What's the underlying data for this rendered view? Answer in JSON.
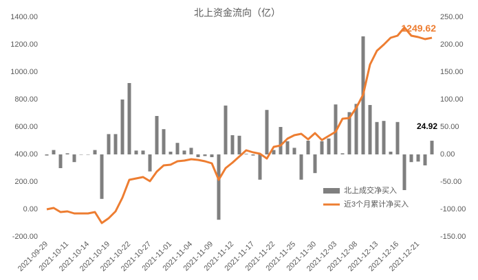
{
  "chart_data": {
    "type": "bar",
    "title": "北上资金流向（亿）",
    "categories": [
      "2021-09-29",
      null,
      null,
      "2021-10-11",
      null,
      null,
      "2021-10-14",
      null,
      null,
      "2021-10-19",
      null,
      null,
      "2021-10-22",
      null,
      null,
      "2021-10-27",
      null,
      null,
      "2021-11-01",
      null,
      null,
      "2021-11-04",
      null,
      null,
      "2021-11-09",
      null,
      null,
      "2021-11-12",
      null,
      null,
      "2021-11-17",
      null,
      null,
      "2021-11-22",
      null,
      null,
      "2021-11-25",
      null,
      null,
      "2021-11-30",
      null,
      null,
      "2021-12-03",
      null,
      null,
      "2021-12-08",
      null,
      null,
      "2021-12-13",
      null,
      null,
      "2021-12-16",
      null,
      null,
      "2021-12-21",
      null,
      null
    ],
    "series": [
      {
        "name": "北上成交净买入",
        "type": "bar",
        "axis": "y2",
        "color": "#7f7f7f",
        "values": [
          -2,
          8,
          -25,
          2,
          -14,
          0,
          0,
          8,
          -81,
          37,
          37,
          100,
          130,
          7,
          7,
          -31,
          70,
          46,
          5,
          21,
          7,
          12,
          -5,
          -3,
          -5,
          -119,
          89,
          35,
          34,
          1,
          -2,
          -46,
          81,
          8,
          50,
          24,
          12,
          -46,
          25,
          -34,
          24,
          29,
          91,
          2,
          77,
          92,
          215,
          90,
          59,
          61,
          5,
          59,
          -65,
          -14,
          -13,
          -20,
          24.92
        ]
      },
      {
        "name": "近3个月累计净买入",
        "type": "line",
        "color": "#ed7d31",
        "values": [
          0,
          10,
          -20,
          -15,
          -30,
          -30,
          -30,
          -20,
          -100,
          -65,
          -15,
          85,
          215,
          225,
          235,
          205,
          275,
          320,
          325,
          350,
          355,
          365,
          360,
          350,
          335,
          215,
          300,
          340,
          385,
          430,
          415,
          405,
          370,
          455,
          465,
          515,
          540,
          550,
          510,
          555,
          505,
          535,
          565,
          660,
          665,
          740,
          835,
          1055,
          1155,
          1200,
          1250,
          1265,
          1325,
          1265,
          1255,
          1240,
          1249.62
        ]
      }
    ],
    "ylim": [
      -200,
      1400
    ],
    "yticks": [
      {
        "value": -200,
        "label": "-200.00"
      },
      {
        "value": 0,
        "label": "0.00"
      },
      {
        "value": 200,
        "label": "200.00"
      },
      {
        "value": 400,
        "label": "400.00"
      },
      {
        "value": 600,
        "label": "600.00"
      },
      {
        "value": 800,
        "label": "800.00"
      },
      {
        "value": 1000,
        "label": "1000.00"
      },
      {
        "value": 1200,
        "label": "1200.00"
      },
      {
        "value": 1400,
        "label": "1400.00"
      }
    ],
    "y2lim": [
      -150,
      250
    ],
    "y2ticks": [
      {
        "value": -150,
        "label": "-150.00"
      },
      {
        "value": -100,
        "label": "-100.00"
      },
      {
        "value": -50,
        "label": "-50.00"
      },
      {
        "value": 0,
        "label": "0.00"
      },
      {
        "value": 50,
        "label": "50.00"
      },
      {
        "value": 100,
        "label": "100.00"
      },
      {
        "value": 150,
        "label": "150.00"
      },
      {
        "value": 200,
        "label": "200.00"
      },
      {
        "value": 250,
        "label": "250.00"
      }
    ],
    "grid": false
  }
}
